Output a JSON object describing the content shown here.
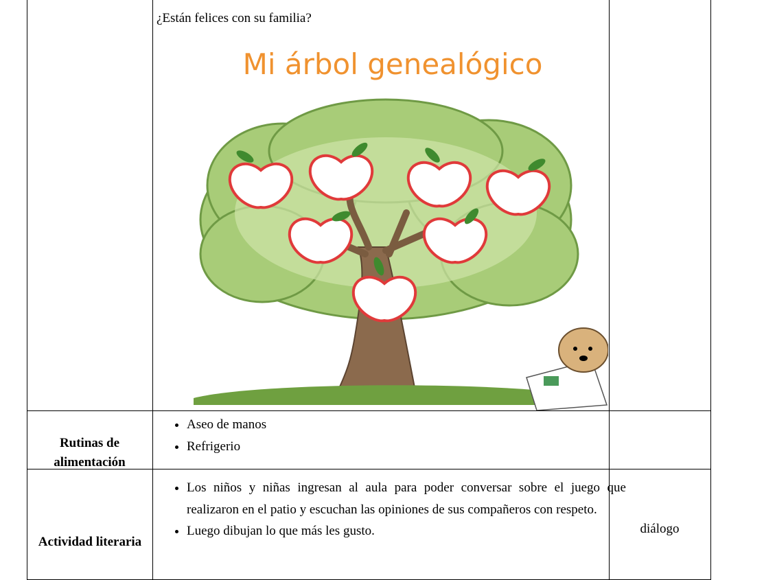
{
  "table": {
    "rows": [
      {
        "question": "¿Están felices con su familia?",
        "image_title": "Mi árbol genealógico"
      },
      {
        "label": "Rutinas de alimentación",
        "items": [
          "Aseo de manos",
          "Refrigerio"
        ]
      },
      {
        "label": "Actividad literaria",
        "items": [
          "Los niños y niñas ingresan al aula para poder conversar sobre el juego que realizaron en el patio y escuchan las opiniones de sus compañeros con respeto.",
          "Luego dibujan lo que más les gusto."
        ],
        "resource": "diálogo"
      }
    ]
  }
}
